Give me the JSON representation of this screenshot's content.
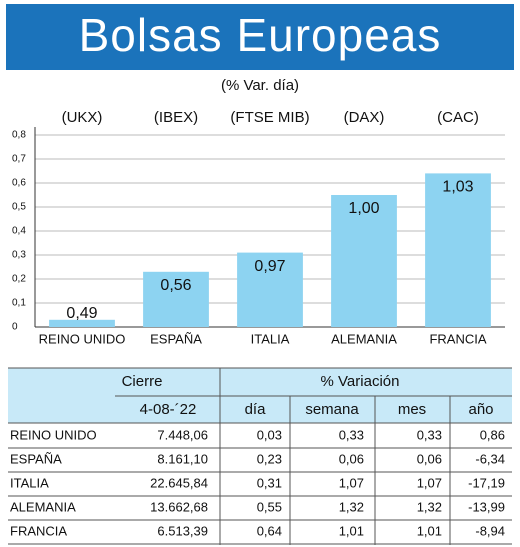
{
  "chart_data": {
    "type": "bar",
    "title": "Bolsas Europeas",
    "subtitle": "(% Var. día)",
    "tickers": [
      "(UKX)",
      "(IBEX)",
      "(FTSE MIB)",
      "(DAX)",
      "(CAC)"
    ],
    "categories": [
      "REINO UNIDO",
      "ESPAÑA",
      "ITALIA",
      "ALEMANIA",
      "FRANCIA"
    ],
    "values": [
      0.03,
      0.23,
      0.31,
      0.55,
      0.64
    ],
    "annotations": [
      "0,49",
      "0,56",
      "0,97",
      "1,00",
      "1,03"
    ],
    "color": "#8dd3f1",
    "title_background": "#1b73bb",
    "ylim": [
      0,
      0.8
    ],
    "yticks": [
      0,
      {
        "value": 0.1,
        "label": "0,1"
      },
      {
        "value": 0.2,
        "label": "0,2"
      },
      {
        "value": 0.3,
        "label": "0,3"
      },
      {
        "value": 0.4,
        "label": "0,4"
      },
      {
        "value": 0.5,
        "label": "0,5"
      },
      {
        "value": 0.6,
        "label": "0,6"
      },
      {
        "value": 0.7,
        "label": "0,7"
      },
      {
        "value": 0.8,
        "label": "0,8"
      }
    ],
    "grid": true
  },
  "table": {
    "group_headers": [
      "Cierre",
      "% Variación"
    ],
    "columns": [
      "4-08-´22",
      "día",
      "semana",
      "mes",
      "año"
    ],
    "rows": [
      [
        "REINO UNIDO",
        "7.448,06",
        "0,03",
        "0,33",
        "0,33",
        "0,86"
      ],
      [
        "ESPAÑA",
        "8.161,10",
        "0,23",
        "0,06",
        "0,06",
        "-6,34"
      ],
      [
        "ITALIA",
        "22.645,84",
        "0,31",
        "1,07",
        "1,07",
        "-17,19"
      ],
      [
        "ALEMANIA",
        "13.662,68",
        "0,55",
        "1,32",
        "1,32",
        "-13,99"
      ],
      [
        "FRANCIA",
        "6.513,39",
        "0,64",
        "1,01",
        "1,01",
        "-8,94"
      ]
    ]
  }
}
